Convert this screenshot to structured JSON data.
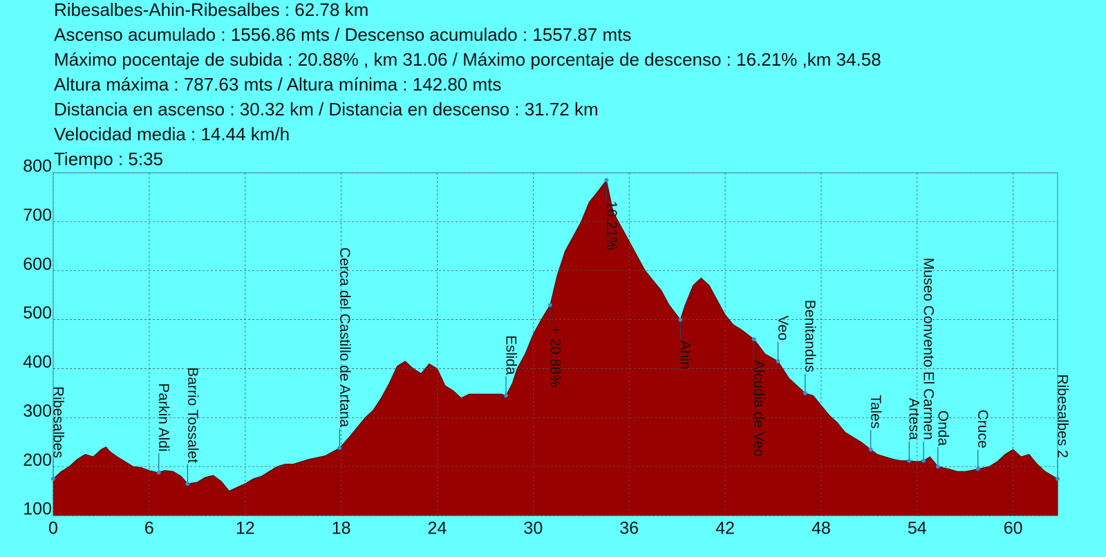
{
  "chart_data": {
    "type": "area",
    "info_lines": [
      "Ribesalbes-Ahin-Ribesalbes  :  62.78 km",
      "Ascenso acumulado  :  1556.86 mts /  Descenso acumulado  :  1557.87 mts",
      "Máximo pocentaje de subida  :  20.88% , km 31.06  /  Máximo porcentaje de descenso  :  16.21% ,km 34.58",
      "Altura máxima  :  787.63 mts  /  Altura mínima  :  142.80 mts",
      "Distancia en ascenso  :  30.32 km   /  Distancia en descenso  :  31.72 km",
      "Velocidad media  :  14.44 km/h",
      "Tiempo  :  5:35"
    ],
    "x": [
      0,
      0.5,
      1,
      1.5,
      2,
      2.5,
      3,
      3.3,
      3.5,
      4,
      4.5,
      5,
      5.5,
      6,
      6.5,
      7,
      7.5,
      8,
      8.4,
      9,
      9.5,
      10,
      10.5,
      11,
      11.5,
      12,
      12.5,
      13,
      13.5,
      14,
      14.5,
      15,
      16,
      17,
      17.9,
      18.5,
      19,
      19.5,
      20,
      20.5,
      21,
      21.5,
      22,
      22.5,
      23,
      23.5,
      24,
      24.5,
      25,
      25.5,
      26,
      27,
      28,
      28.3,
      28.7,
      29,
      29.5,
      30,
      30.5,
      31.06,
      31.5,
      32,
      32.5,
      33,
      33.5,
      34,
      34.58,
      35,
      35.5,
      36,
      36.5,
      37,
      37.5,
      38,
      38.5,
      39.2,
      39.5,
      40,
      40.5,
      41,
      41.5,
      42,
      42.5,
      43,
      43.8,
      44.5,
      45.3,
      46,
      47,
      47.5,
      48,
      48.5,
      49,
      49.5,
      50,
      50.5,
      51.1,
      51.5,
      52,
      52.5,
      53,
      53.5,
      54,
      54.4,
      54.8,
      55.3,
      56,
      56.5,
      57,
      57.8,
      58.5,
      59,
      59.5,
      60,
      60.5,
      61,
      61.5,
      62,
      62.78
    ],
    "values": [
      175,
      190,
      200,
      215,
      225,
      220,
      235,
      240,
      232,
      220,
      210,
      200,
      198,
      192,
      188,
      192,
      190,
      180,
      165,
      168,
      178,
      182,
      170,
      150,
      158,
      165,
      175,
      180,
      190,
      200,
      205,
      205,
      215,
      222,
      238,
      260,
      280,
      300,
      315,
      340,
      370,
      405,
      415,
      400,
      390,
      410,
      400,
      365,
      355,
      340,
      348,
      348,
      348,
      345,
      370,
      400,
      430,
      470,
      500,
      530,
      590,
      640,
      670,
      700,
      740,
      760,
      785,
      720,
      690,
      660,
      630,
      600,
      580,
      560,
      530,
      500,
      530,
      570,
      585,
      570,
      540,
      510,
      490,
      480,
      460,
      430,
      415,
      380,
      350,
      345,
      325,
      305,
      290,
      270,
      260,
      250,
      235,
      225,
      220,
      215,
      212,
      212,
      210,
      212,
      220,
      200,
      195,
      190,
      190,
      195,
      200,
      210,
      225,
      235,
      220,
      225,
      205,
      190,
      175
    ],
    "color": "#990000",
    "annotations": [
      {
        "label": "Ribesalbes",
        "x": 0,
        "y": 175,
        "side": "above"
      },
      {
        "label": "Parkin Aldi",
        "x": 6.6,
        "y": 188,
        "side": "above"
      },
      {
        "label": "Barrio Tossalet",
        "x": 8.4,
        "y": 165,
        "side": "above"
      },
      {
        "label": "Cerca del Castillo de Artana",
        "x": 17.9,
        "y": 238,
        "side": "above"
      },
      {
        "label": "Eslida",
        "x": 28.3,
        "y": 345,
        "side": "above"
      },
      {
        "label": "+ 20.88%",
        "x": 31.06,
        "y": 530,
        "side": "below"
      },
      {
        "label": "16.21%",
        "x": 34.58,
        "y": 785,
        "side": "below"
      },
      {
        "label": "Ahin",
        "x": 39.2,
        "y": 500,
        "side": "below"
      },
      {
        "label": "Alcudia de Veo",
        "x": 43.8,
        "y": 460,
        "side": "below"
      },
      {
        "label": "Veo",
        "x": 45.3,
        "y": 415,
        "side": "above"
      },
      {
        "label": "Benitandus",
        "x": 47,
        "y": 350,
        "side": "above"
      },
      {
        "label": "Tales",
        "x": 51.1,
        "y": 235,
        "side": "above"
      },
      {
        "label": "Artesa",
        "x": 53.5,
        "y": 212,
        "side": "above"
      },
      {
        "label": "Museo Convento El Carmen",
        "x": 54.4,
        "y": 212,
        "side": "above"
      },
      {
        "label": "Onda",
        "x": 55.3,
        "y": 200,
        "side": "above"
      },
      {
        "label": "Cruce",
        "x": 57.8,
        "y": 195,
        "side": "above"
      },
      {
        "label": "Ribesalbes 2",
        "x": 62.78,
        "y": 175,
        "side": "above"
      }
    ],
    "xlim": [
      0,
      62.78
    ],
    "ylim": [
      100,
      800
    ],
    "xticks": [
      0,
      6,
      12,
      18,
      24,
      30,
      36,
      42,
      48,
      54,
      60
    ],
    "yticks": [
      100,
      200,
      300,
      400,
      500,
      600,
      700,
      800
    ],
    "grid": true
  }
}
